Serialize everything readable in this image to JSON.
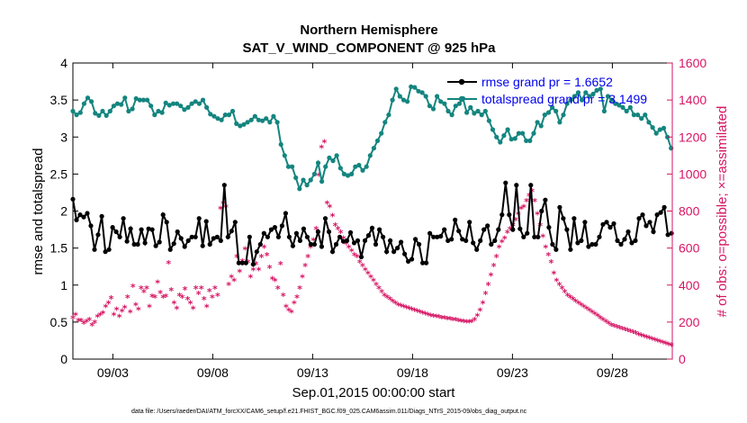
{
  "chart_data": {
    "type": "line",
    "title": "Northern Hemisphere",
    "subtitle": "SAT_V_WIND_COMPONENT @ 925 hPa",
    "xlabel": "Sep.01,2015 00:00:00 start",
    "ylabel": "rmse and totalspread",
    "y2label": "# of obs: o=possible; ×=assimilated",
    "footnote": "data file: /Users/raeder/DAI/ATM_forcXX/CAM6_setup/f.e21.FHIST_BGC.f09_025.CAM6assim.011/Diags_NTrS_2015-09/obs_diag_output.nc",
    "xlim": [
      0,
      30
    ],
    "ylim": [
      0,
      4
    ],
    "y2lim": [
      0,
      1600
    ],
    "x_ticks": [
      2,
      7,
      12,
      17,
      22,
      27
    ],
    "x_tick_labels": [
      "09/03",
      "09/08",
      "09/13",
      "09/18",
      "09/23",
      "09/28"
    ],
    "y_ticks": [
      0,
      0.5,
      1,
      1.5,
      2,
      2.5,
      3,
      3.5,
      4
    ],
    "y_tick_labels": [
      "0",
      "0.5",
      "1",
      "1.5",
      "2",
      "2.5",
      "3",
      "3.5",
      "4"
    ],
    "y2_ticks": [
      0,
      200,
      400,
      600,
      800,
      1000,
      1200,
      1400,
      1600
    ],
    "y2_tick_labels": [
      "0",
      "200",
      "400",
      "600",
      "800",
      "1000",
      "1200",
      "1400",
      "1600"
    ],
    "legend_position": "top-right",
    "colors": {
      "rmse": "#000000",
      "spread": "#14857f",
      "obs": "#d61463",
      "legend_text": "#0000ee",
      "right_axis": "#d61463"
    },
    "series": [
      {
        "name": "rmse grand pr = 1.6652",
        "axis": "left",
        "color": "#000000",
        "values": [
          2.16,
          1.88,
          1.95,
          1.92,
          1.97,
          1.8,
          1.48,
          1.68,
          1.93,
          1.45,
          1.48,
          1.78,
          1.72,
          1.65,
          1.9,
          1.59,
          1.76,
          1.55,
          1.55,
          1.75,
          1.57,
          1.76,
          1.75,
          1.53,
          1.58,
          1.95,
          1.85,
          1.48,
          1.56,
          1.72,
          1.63,
          1.52,
          1.6,
          1.65,
          1.65,
          1.9,
          1.53,
          1.86,
          1.55,
          1.63,
          1.65,
          1.6,
          2.35,
          1.65,
          1.73,
          1.85,
          1.3,
          1.3,
          1.3,
          1.65,
          1.28,
          1.45,
          1.55,
          1.7,
          1.65,
          1.75,
          1.78,
          1.65,
          1.8,
          1.97,
          1.65,
          1.53,
          1.7,
          1.6,
          1.76,
          1.65,
          1.55,
          1.55,
          1.72,
          1.52,
          1.9,
          1.72,
          1.45,
          1.55,
          1.65,
          1.59,
          1.6,
          1.71,
          1.57,
          1.6,
          1.38,
          1.6,
          1.67,
          1.77,
          1.55,
          1.75,
          1.65,
          1.45,
          1.6,
          1.45,
          1.5,
          1.58,
          1.42,
          1.32,
          1.35,
          1.62,
          1.55,
          1.3,
          1.3,
          1.7,
          1.65,
          1.65,
          1.66,
          1.75,
          1.6,
          1.62,
          1.88,
          1.73,
          1.62,
          1.6,
          1.85,
          1.57,
          1.48,
          1.6,
          1.75,
          1.8,
          1.55,
          1.6,
          1.75,
          1.95,
          2.38,
          1.95,
          1.75,
          2.35,
          1.76,
          1.65,
          1.7,
          2.35,
          1.65,
          1.65,
          2.0,
          2.15,
          1.78,
          1.55,
          1.48,
          2.05,
          1.9,
          1.75,
          1.48,
          1.9,
          1.57,
          1.6,
          1.85,
          1.52,
          1.55,
          1.55,
          1.65,
          1.82,
          1.85,
          1.78,
          1.83,
          1.6,
          1.55,
          1.62,
          1.72,
          1.57,
          1.6,
          1.9,
          1.95,
          1.8,
          1.85,
          1.72,
          1.95,
          1.98,
          2.05,
          1.68,
          1.7,
          1.8,
          1.88,
          1.85
        ],
        "x_start": 0,
        "x_end": 30.5
      },
      {
        "name": "totalspread grand pr = 3.1499",
        "axis": "left",
        "color": "#14857f",
        "values": [
          3.35,
          3.3,
          3.33,
          3.45,
          3.53,
          3.48,
          3.32,
          3.29,
          3.35,
          3.29,
          3.35,
          3.42,
          3.45,
          3.44,
          3.53,
          3.35,
          3.38,
          3.52,
          3.5,
          3.5,
          3.5,
          3.42,
          3.3,
          3.35,
          3.33,
          3.46,
          3.43,
          3.45,
          3.45,
          3.42,
          3.37,
          3.4,
          3.45,
          3.48,
          3.45,
          3.5,
          3.4,
          3.31,
          3.28,
          3.25,
          3.23,
          3.3,
          3.3,
          3.35,
          3.18,
          3.15,
          3.17,
          3.2,
          3.23,
          3.28,
          3.23,
          3.22,
          3.25,
          3.2,
          3.28,
          3.2,
          2.9,
          2.75,
          2.6,
          2.6,
          2.45,
          2.3,
          2.42,
          2.35,
          2.42,
          2.5,
          2.65,
          2.4,
          2.6,
          2.72,
          2.68,
          2.75,
          2.58,
          2.5,
          2.48,
          2.5,
          2.6,
          2.62,
          2.55,
          2.6,
          2.75,
          2.85,
          2.95,
          3.05,
          3.2,
          3.3,
          3.5,
          3.65,
          3.55,
          3.5,
          3.48,
          3.68,
          3.67,
          3.62,
          3.6,
          3.55,
          3.42,
          3.38,
          3.55,
          3.48,
          3.45,
          3.35,
          3.3,
          3.42,
          3.45,
          3.52,
          3.33,
          3.4,
          3.32,
          3.35,
          3.3,
          3.35,
          3.22,
          3.1,
          3.0,
          2.93,
          3.02,
          3.1,
          2.97,
          2.98,
          3.05,
          3.05,
          2.95,
          2.95,
          3.05,
          3.2,
          3.15,
          3.3,
          3.33,
          3.4,
          3.35,
          3.2,
          3.3,
          3.45,
          3.5,
          3.55,
          3.6,
          3.5,
          3.6,
          3.55,
          3.58,
          3.63,
          3.65,
          3.35,
          3.55,
          3.5,
          3.45,
          3.43,
          3.4,
          3.35,
          3.4,
          3.3,
          3.3,
          3.25,
          3.3,
          3.2,
          3.13,
          3.05,
          3.1,
          3.12,
          3.0,
          2.85,
          2.65,
          2.75,
          2.65
        ],
        "x_start": 0,
        "x_end": 30.5
      },
      {
        "name": "# of obs assimilated",
        "axis": "right",
        "color": "#d61463",
        "values": [
          220,
          235,
          205,
          205,
          190,
          200,
          210,
          180,
          195,
          225,
          235,
          245,
          280,
          300,
          325,
          235,
          265,
          225,
          255,
          275,
          330,
          250,
          390,
          290,
          265,
          380,
          360,
          380,
          280,
          335,
          330,
          410,
          355,
          330,
          335,
          515,
          370,
          300,
          270,
          340,
          330,
          375,
          320,
          300,
          270,
          380,
          350,
          380,
          320,
          280,
          365,
          330,
          380,
          340,
          810,
          840,
          820,
          400,
          440,
          420,
          550,
          470,
          525,
          590,
          520,
          440,
          480,
          510,
          480,
          550,
          600,
          560,
          490,
          430,
          420,
          380,
          510,
          340,
          280,
          260,
          250,
          300,
          330,
          380,
          440,
          500,
          550,
          600,
          640,
          700,
          990,
          1140,
          1170,
          840,
          820,
          770,
          720,
          700,
          680,
          650,
          620,
          600,
          580,
          560,
          550,
          520,
          500,
          480,
          460,
          440,
          420,
          400,
          380,
          360,
          340,
          330,
          320,
          310,
          300,
          290,
          285,
          280,
          275,
          270,
          265,
          260,
          255,
          250,
          245,
          240,
          235,
          230,
          228,
          225,
          223,
          220,
          218,
          215,
          213,
          210,
          208,
          205,
          203,
          200,
          198,
          196,
          200,
          210,
          230,
          260,
          300,
          350,
          400,
          450,
          500,
          550,
          600,
          630,
          650,
          680,
          700,
          720,
          750,
          780,
          810,
          820,
          850,
          880,
          905,
          850,
          780,
          720,
          660,
          600,
          560,
          520,
          460,
          420,
          400,
          380,
          360,
          340,
          330,
          320,
          310,
          300,
          290,
          280,
          270,
          260,
          250,
          240,
          230,
          220,
          210,
          200,
          190,
          180,
          175,
          170,
          165,
          160,
          155,
          150,
          145,
          140,
          135,
          130,
          125,
          120,
          115,
          110,
          105,
          100,
          95,
          90,
          85,
          80,
          75,
          70,
          65,
          60,
          55,
          50
        ],
        "x_start": 0,
        "x_end": 30.5
      }
    ]
  }
}
